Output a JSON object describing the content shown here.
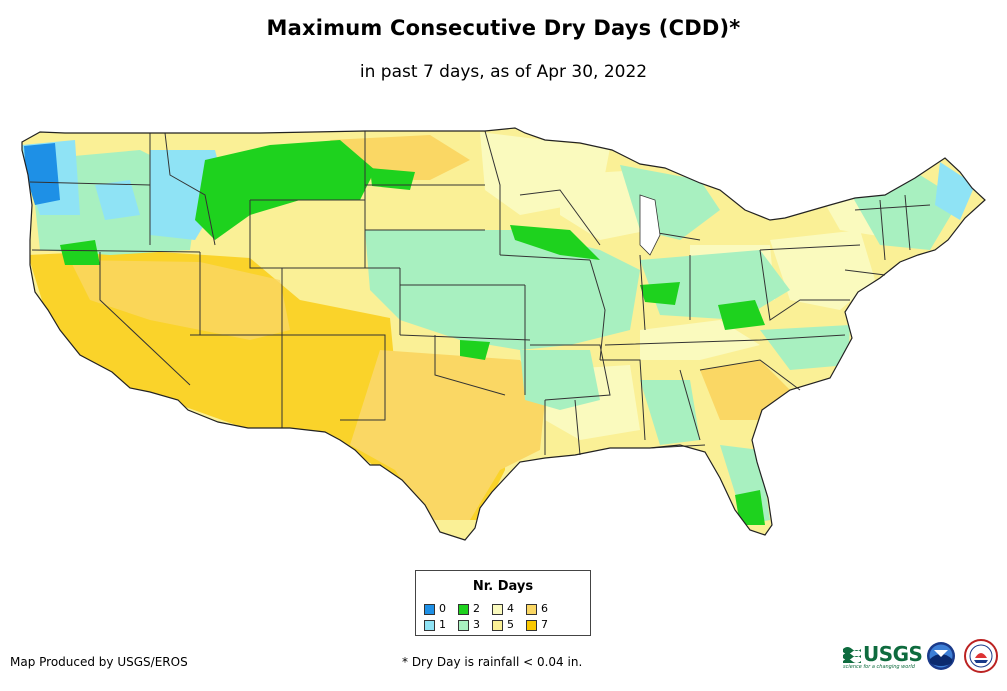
{
  "header": {
    "title": "Maximum Consecutive Dry Days (CDD)*",
    "subtitle": "in past 7 days, as of Apr 30, 2022"
  },
  "legend": {
    "title": "Nr. Days",
    "items": [
      {
        "label": "0",
        "color": "#1e90e6"
      },
      {
        "label": "1",
        "color": "#8fe3f5"
      },
      {
        "label": "2",
        "color": "#1ed21e"
      },
      {
        "label": "3",
        "color": "#a8f0c0"
      },
      {
        "label": "4",
        "color": "#fafabe"
      },
      {
        "label": "5",
        "color": "#faf096"
      },
      {
        "label": "6",
        "color": "#fad764"
      },
      {
        "label": "7",
        "color": "#fac800"
      }
    ]
  },
  "footer": {
    "producer": "Map Produced by USGS/EROS",
    "note": "* Dry Day is rainfall < 0.04 in."
  },
  "logos": {
    "usgs": "USGS",
    "usgs_tagline": "science for a changing world"
  },
  "map": {
    "background": "#ffffff",
    "border_color": "#333333"
  }
}
